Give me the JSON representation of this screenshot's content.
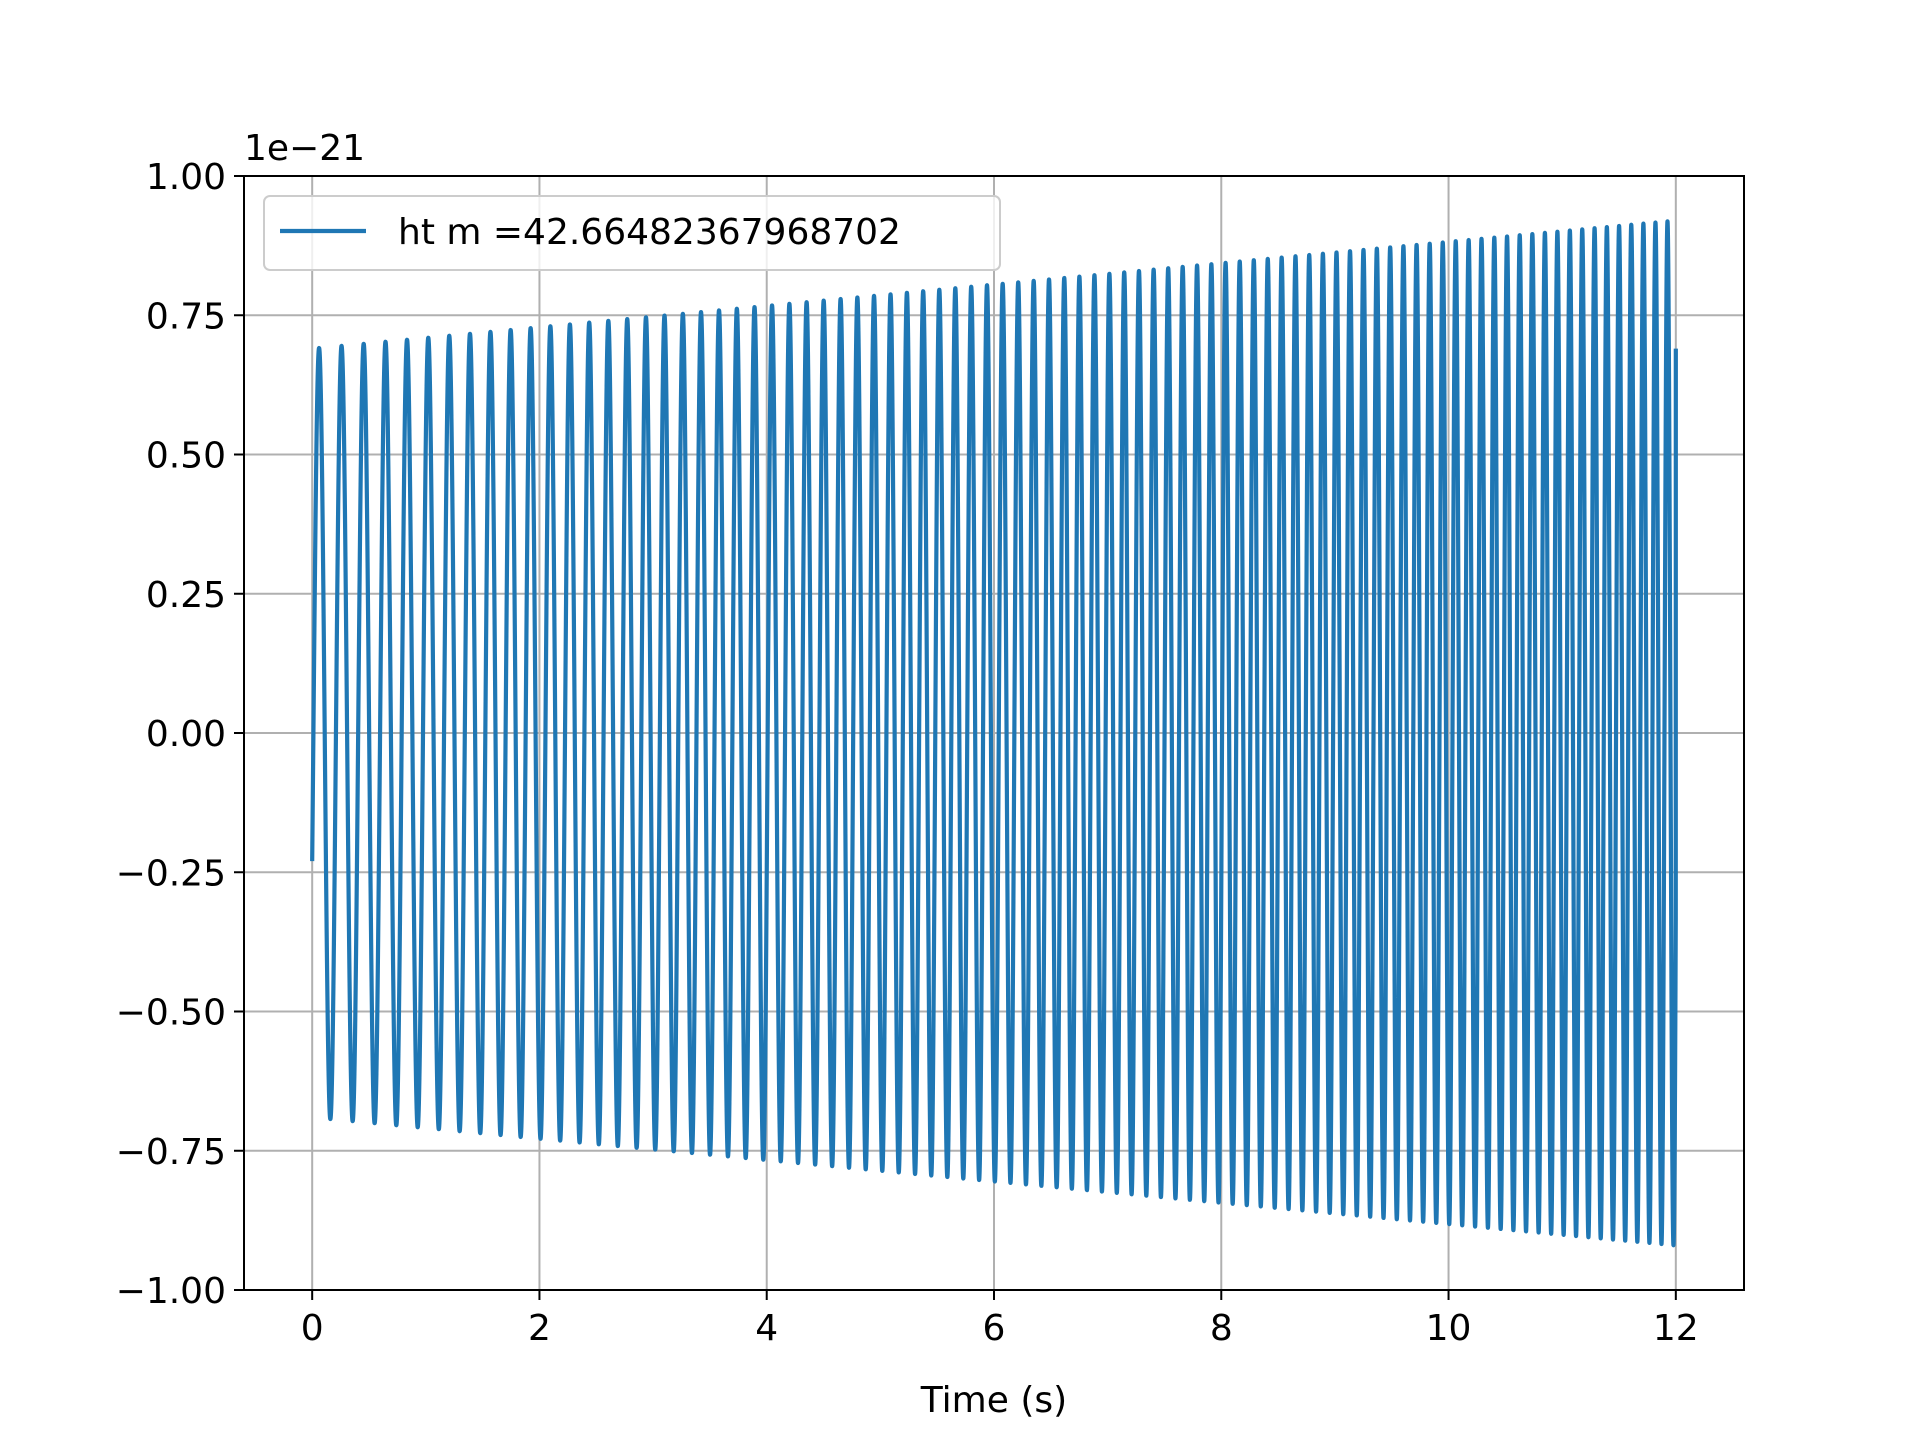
{
  "chart_data": {
    "type": "line",
    "title": "",
    "xlabel": "Time (s)",
    "ylabel": "",
    "offset_text": "1e−21",
    "xlim": [
      -0.6,
      12.6
    ],
    "ylim": [
      -1.0,
      1.0
    ],
    "xticks": [
      0,
      2,
      4,
      6,
      8,
      10,
      12
    ],
    "xtick_labels": [
      "0",
      "2",
      "4",
      "6",
      "8",
      "10",
      "12"
    ],
    "yticks": [
      -1.0,
      -0.75,
      -0.5,
      -0.25,
      0.0,
      0.25,
      0.5,
      0.75,
      1.0
    ],
    "ytick_labels": [
      "−1.00",
      "−0.75",
      "−0.50",
      "−0.25",
      "0.00",
      "0.25",
      "0.50",
      "0.75",
      "1.00"
    ],
    "grid": true,
    "legend": "upper-left",
    "series": [
      {
        "name": "ht m =42.66482367968702",
        "color": "#1f77b4",
        "t_start": 0,
        "t_end": 12,
        "frequency_start_hz": 5.0,
        "frequency_end_hz": 9.5,
        "amplitude_start": 0.69,
        "amplitude_end": 0.92,
        "initial_value": -0.23,
        "final_value": 0.69
      }
    ]
  }
}
